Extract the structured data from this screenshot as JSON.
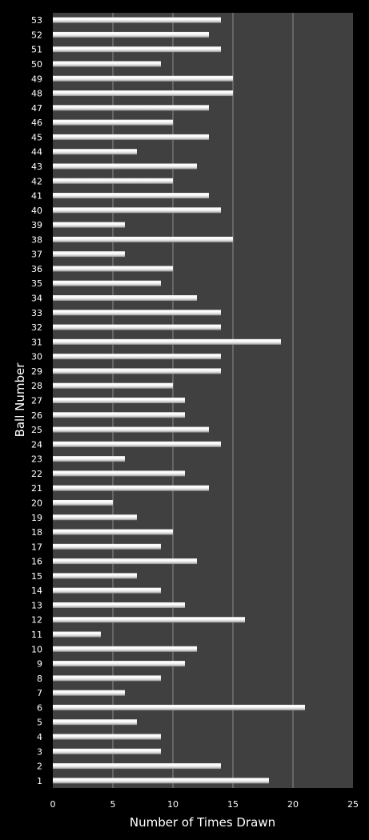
{
  "chart_data": {
    "type": "bar",
    "orientation": "horizontal",
    "title": "",
    "xlabel": "Number of Times Drawn",
    "ylabel": "Ball Number",
    "xlim": [
      0,
      25
    ],
    "xticks": [
      0,
      5,
      10,
      15,
      20,
      25
    ],
    "grid": "vertical",
    "legend": "none",
    "categories": [
      "1",
      "2",
      "3",
      "4",
      "5",
      "6",
      "7",
      "8",
      "9",
      "10",
      "11",
      "12",
      "13",
      "14",
      "15",
      "16",
      "17",
      "18",
      "19",
      "20",
      "21",
      "22",
      "23",
      "24",
      "25",
      "26",
      "27",
      "28",
      "29",
      "30",
      "31",
      "32",
      "33",
      "34",
      "35",
      "36",
      "37",
      "38",
      "39",
      "40",
      "41",
      "42",
      "43",
      "44",
      "45",
      "46",
      "47",
      "48",
      "49",
      "50",
      "51",
      "52",
      "53"
    ],
    "values": [
      18,
      14,
      9,
      9,
      7,
      21,
      6,
      9,
      11,
      12,
      4,
      16,
      11,
      9,
      7,
      12,
      9,
      10,
      7,
      5,
      13,
      11,
      6,
      14,
      13,
      11,
      11,
      10,
      14,
      14,
      19,
      14,
      14,
      12,
      9,
      10,
      6,
      15,
      6,
      14,
      13,
      10,
      12,
      7,
      13,
      10,
      13,
      15,
      15,
      9,
      14,
      13,
      14
    ]
  },
  "colors": {
    "background": "#000000",
    "plot_area": "#404040",
    "gridline": "#8c8c8c",
    "bar_light": "#ffffff",
    "bar_dark": "#9a9a9a",
    "text": "#ffffff"
  }
}
